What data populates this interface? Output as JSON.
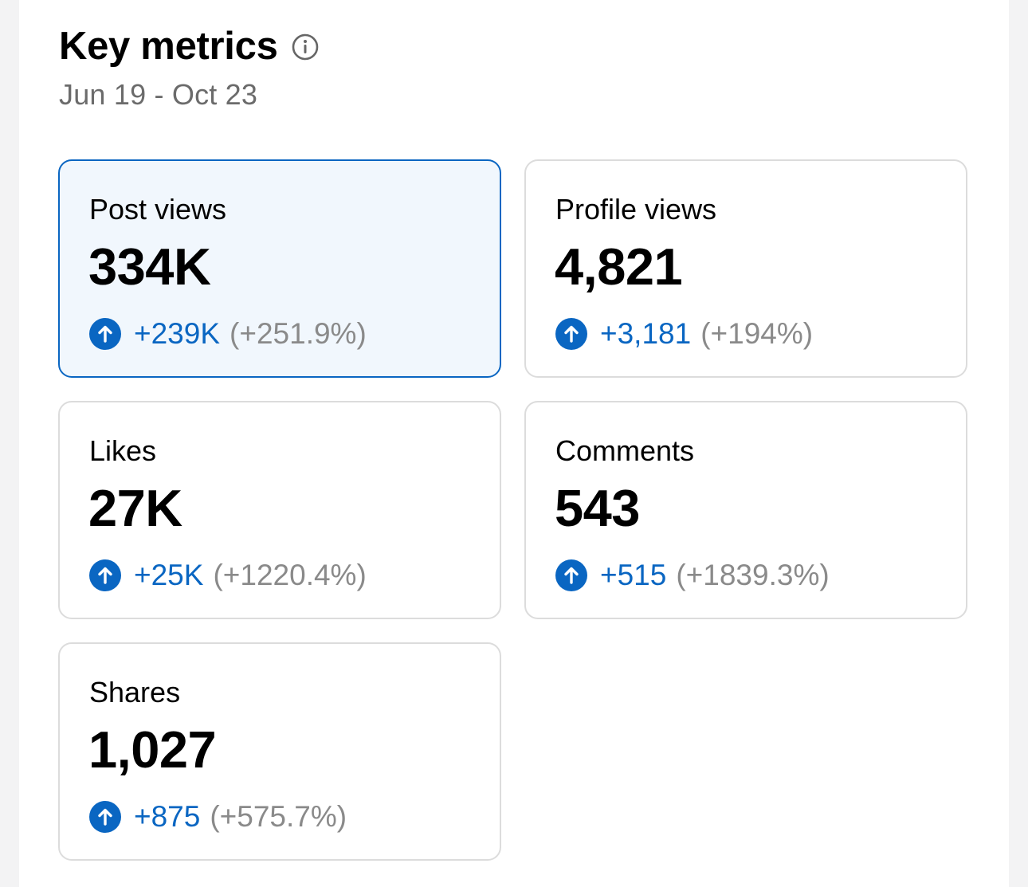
{
  "header": {
    "title": "Key metrics",
    "date_range": "Jun 19 - Oct 23"
  },
  "colors": {
    "accent": "#0a66c2",
    "selected_card_bg": "#f1f7fd",
    "muted_text": "#8a8a8a"
  },
  "metrics": [
    {
      "label": "Post views",
      "value": "334K",
      "change": "+239K",
      "change_pct": "(+251.9%)",
      "selected": true,
      "icon": "arrow-up-circle-icon"
    },
    {
      "label": "Profile views",
      "value": "4,821",
      "change": "+3,181",
      "change_pct": "(+194%)",
      "selected": false,
      "icon": "arrow-up-circle-icon"
    },
    {
      "label": "Likes",
      "value": "27K",
      "change": "+25K",
      "change_pct": "(+1220.4%)",
      "selected": false,
      "icon": "arrow-up-circle-icon"
    },
    {
      "label": "Comments",
      "value": "543",
      "change": "+515",
      "change_pct": "(+1839.3%)",
      "selected": false,
      "icon": "arrow-up-circle-icon"
    },
    {
      "label": "Shares",
      "value": "1,027",
      "change": "+875",
      "change_pct": "(+575.7%)",
      "selected": false,
      "icon": "arrow-up-circle-icon"
    }
  ]
}
